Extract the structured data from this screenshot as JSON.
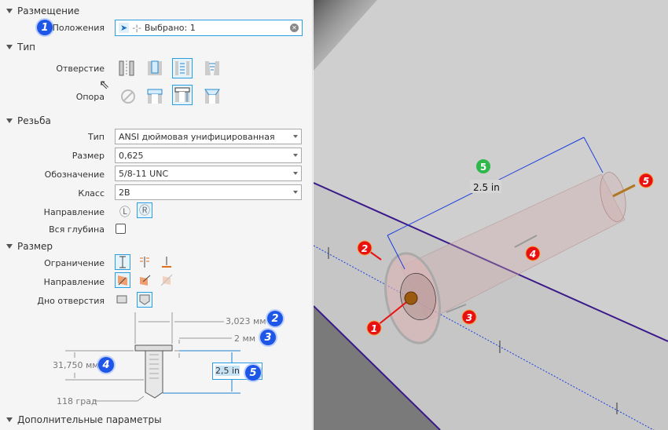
{
  "placement": {
    "header": "Размещение",
    "positions_label": "Положения",
    "positions_value": "Выбрано: 1",
    "badge": "1"
  },
  "type": {
    "header": "Тип",
    "hole_label": "Отверстие",
    "seat_label": "Опора"
  },
  "thread": {
    "header": "Резьба",
    "type_label": "Тип",
    "type_value": "ANSI дюймовая унифицированная",
    "size_label": "Размер",
    "size_value": "0,625",
    "designation_label": "Обозначение",
    "designation_value": "5/8-11 UNC",
    "class_label": "Класс",
    "class_value": "2B",
    "direction_label": "Направление",
    "full_depth_label": "Вся глубина",
    "full_depth_checked": false
  },
  "size": {
    "header": "Размер",
    "termination_label": "Ограничение",
    "direction_label": "Направление",
    "bottom_label": "Дно отверстия"
  },
  "diagram": {
    "cb_diameter": "3,023 мм",
    "cb_depth": "2 мм",
    "thread_depth": "31,750 мм",
    "hole_depth": "2,5 in",
    "drill_angle": "118 град",
    "badges": [
      "2",
      "3",
      "4",
      "5"
    ]
  },
  "advanced": {
    "header": "Дополнительные параметры"
  },
  "viewport": {
    "dimension_label": "2.5 in",
    "dimension_badge": "5",
    "badges": [
      "1",
      "2",
      "3",
      "4",
      "5"
    ],
    "colors": {
      "dimension": "#1a3be0",
      "edge": "#3a1a8a",
      "badge_red": "#e81010",
      "badge_green": "#2fb84a"
    }
  }
}
